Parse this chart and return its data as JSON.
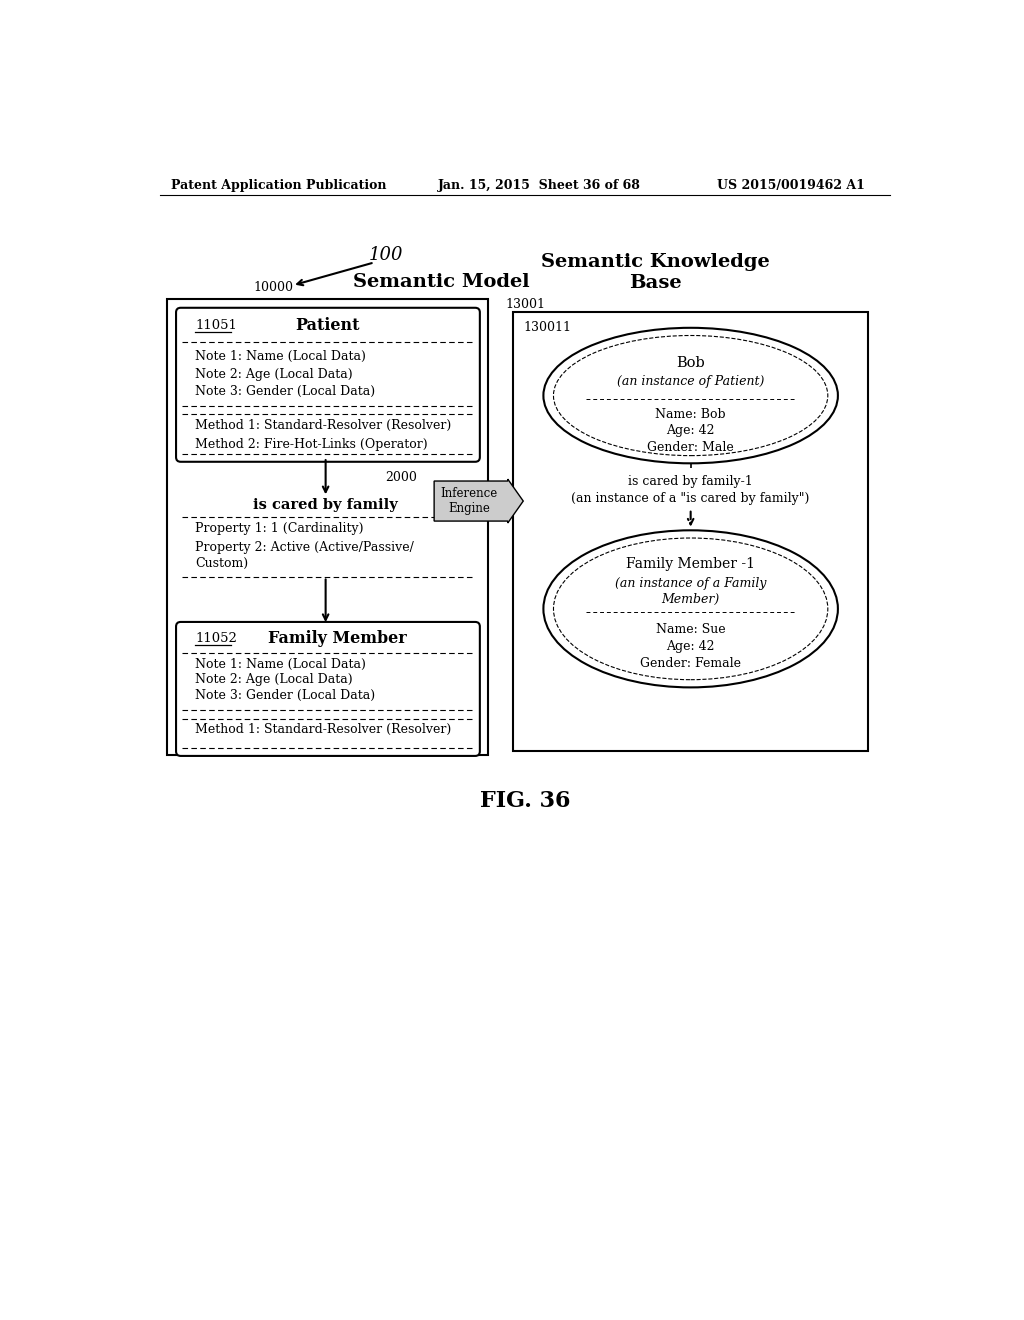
{
  "header_left": "Patent Application Publication",
  "header_mid": "Jan. 15, 2015  Sheet 36 of 68",
  "header_right": "US 2015/0019462 A1",
  "fig_label": "FIG. 36",
  "label_100": "100",
  "label_10000": "10000",
  "label_13001": "13001",
  "label_130011": "130011",
  "label_2000": "2000",
  "label_11051": "11051",
  "label_11052": "11052",
  "sem_model_title": "Semantic Model",
  "skb_title": "Semantic Knowledge\nBase",
  "inference_label": "Inference\nEngine",
  "patient_title": "Patient",
  "patient_notes": [
    "Note 1: Name (Local Data)",
    "Note 2: Age (Local Data)",
    "Note 3: Gender (Local Data)"
  ],
  "patient_methods": [
    "Method 1: Standard-Resolver (Resolver)",
    "Method 2: Fire-Hot-Links (Operator)"
  ],
  "rel_title": "is cared by family",
  "rel_prop1": "Property 1: 1 (Cardinality)",
  "rel_prop2a": "Property 2: Active (Active/Passive/",
  "rel_prop2b": "Custom)",
  "family_title": "Family Member",
  "family_notes": [
    "Note 1: Name (Local Data)",
    "Note 2: Age (Local Data)",
    "Note 3: Gender (Local Data)"
  ],
  "family_methods": [
    "Method 1: Standard-Resolver (Resolver)"
  ],
  "bob_line1": "Bob",
  "bob_line2": "(an instance of Patient)",
  "bob_data": [
    "Name: Bob",
    "Age: 42",
    "Gender: Male"
  ],
  "rel_instance_line1": "is cared by family-1",
  "rel_instance_line2": "(an instance of a \"is cared by family\")",
  "fm_line1": "Family Member -1",
  "fm_line2a": "(an instance of a Family",
  "fm_line2b": "Member)",
  "fm_data": [
    "Name: Sue",
    "Age: 42",
    "Gender: Female"
  ],
  "bg_color": "#ffffff",
  "box_color": "#000000",
  "text_color": "#000000"
}
